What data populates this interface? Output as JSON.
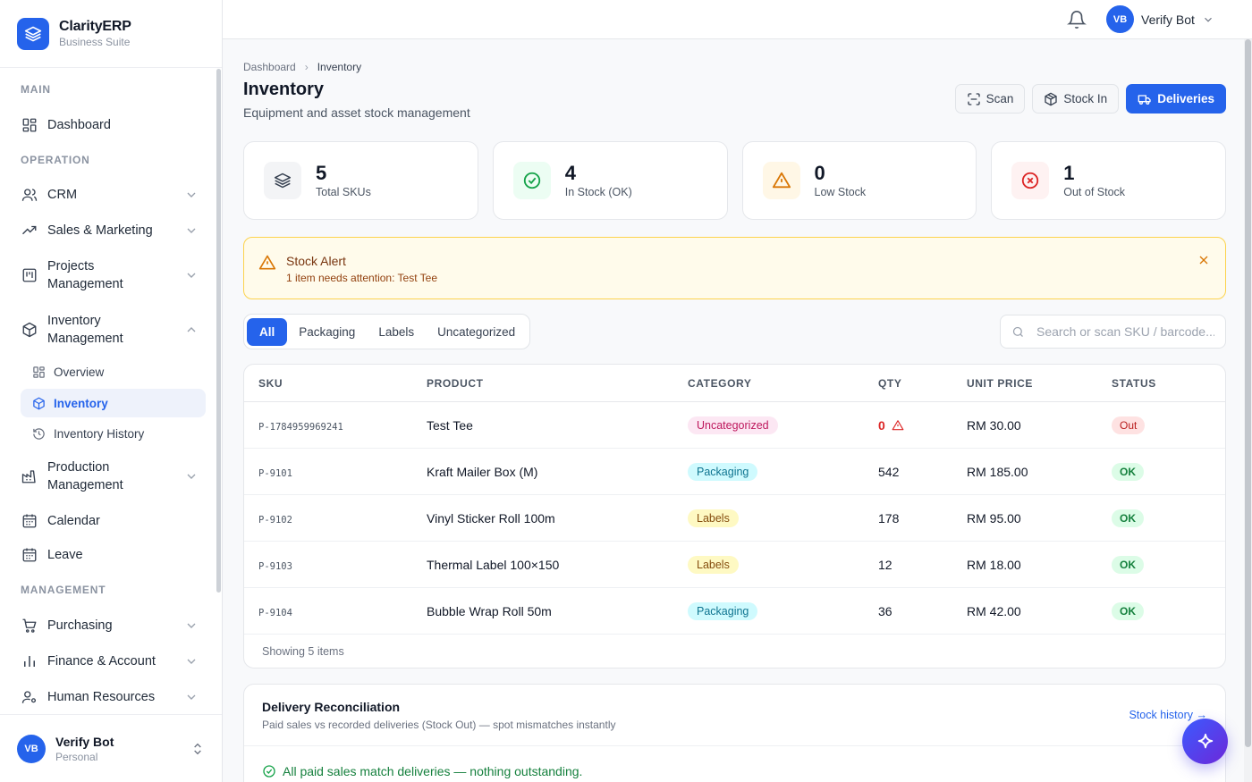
{
  "brand": {
    "name": "ClarityERP",
    "subtitle": "Business Suite",
    "color": "#2563eb"
  },
  "sidebar": {
    "sections": {
      "main": "MAIN",
      "operation": "OPERATION",
      "management": "MANAGEMENT"
    },
    "items": {
      "dashboard": "Dashboard",
      "crm": "CRM",
      "sales": "Sales & Marketing",
      "projects_1": "Projects",
      "projects_2": "Management",
      "inventory_1": "Inventory",
      "inventory_2": "Management",
      "production_1": "Production",
      "production_2": "Management",
      "calendar": "Calendar",
      "leave": "Leave",
      "purchasing": "Purchasing",
      "finance": "Finance & Account",
      "hr": "Human Resources"
    },
    "inventory_sub": {
      "overview": "Overview",
      "inventory": "Inventory",
      "history": "Inventory History"
    },
    "footer_user": {
      "initials": "VB",
      "name": "Verify Bot",
      "workspace": "Personal"
    }
  },
  "topbar": {
    "user_initials": "VB",
    "user_name": "Verify Bot"
  },
  "page": {
    "breadcrumb": {
      "root": "Dashboard",
      "current": "Inventory"
    },
    "title": "Inventory",
    "subtitle": "Equipment and asset stock management",
    "actions": {
      "scan": "Scan",
      "stock_in": "Stock In",
      "deliveries": "Deliveries"
    }
  },
  "stats": [
    {
      "value": "5",
      "label": "Total SKUs",
      "icon": "layers-icon",
      "bg": "#f3f4f6",
      "fg": "#374151"
    },
    {
      "value": "4",
      "label": "In Stock (OK)",
      "icon": "check-circle-icon",
      "bg": "#ecfdf3",
      "fg": "#16a34a"
    },
    {
      "value": "0",
      "label": "Low Stock",
      "icon": "warning-icon",
      "bg": "#fff7e6",
      "fg": "#d97706"
    },
    {
      "value": "1",
      "label": "Out of Stock",
      "icon": "x-circle-icon",
      "bg": "#fef2f2",
      "fg": "#dc2626"
    }
  ],
  "alert": {
    "title": "Stock Alert",
    "text": "1 item needs attention: Test Tee"
  },
  "tabs": [
    "All",
    "Packaging",
    "Labels",
    "Uncategorized"
  ],
  "search": {
    "placeholder": "Search or scan SKU / barcode..."
  },
  "table": {
    "headers": {
      "sku": "SKU",
      "product": "PRODUCT",
      "category": "CATEGORY",
      "qty": "QTY",
      "price": "UNIT PRICE",
      "status": "STATUS"
    },
    "rows": [
      {
        "sku": "P-1784959969241",
        "product": "Test Tee",
        "category": "Uncategorized",
        "qty": "0",
        "price": "RM 30.00",
        "status": "Out"
      },
      {
        "sku": "P-9101",
        "product": "Kraft Mailer Box (M)",
        "category": "Packaging",
        "qty": "542",
        "price": "RM 185.00",
        "status": "OK"
      },
      {
        "sku": "P-9102",
        "product": "Vinyl Sticker Roll 100m",
        "category": "Labels",
        "qty": "178",
        "price": "RM 95.00",
        "status": "OK"
      },
      {
        "sku": "P-9103",
        "product": "Thermal Label 100×150",
        "category": "Labels",
        "qty": "12",
        "price": "RM 18.00",
        "status": "OK"
      },
      {
        "sku": "P-9104",
        "product": "Bubble Wrap Roll 50m",
        "category": "Packaging",
        "qty": "36",
        "price": "RM 42.00",
        "status": "OK"
      }
    ],
    "footer": "Showing 5 items"
  },
  "reconciliation": {
    "title": "Delivery Reconciliation",
    "subtitle": "Paid sales vs recorded deliveries (Stock Out) — spot mismatches instantly",
    "link": "Stock history →",
    "message": "All paid sales match deliveries — nothing outstanding."
  }
}
